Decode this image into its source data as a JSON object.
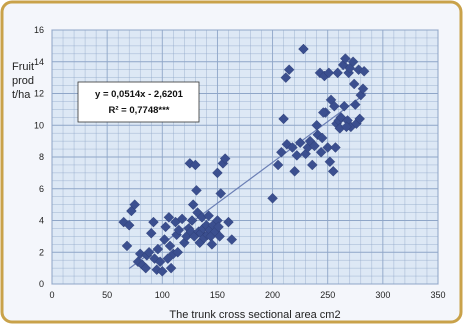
{
  "chart_data": {
    "type": "scatter",
    "title": "",
    "xlabel": "The trunk cross sectional area cm2",
    "ylabel": "Fruit prod t/ha",
    "ylabel_lines": [
      "Fruit",
      "prod",
      "t/ha"
    ],
    "xlim": [
      0,
      350
    ],
    "ylim": [
      0,
      16
    ],
    "x_ticks": [
      0,
      50,
      100,
      150,
      200,
      250,
      300,
      350
    ],
    "y_ticks": [
      0,
      2,
      4,
      6,
      8,
      10,
      12,
      14,
      16
    ],
    "grid": true,
    "equation": "y = 0,0514x - 2,6201",
    "r_squared": "R² = 0,7748***",
    "trendline": {
      "slope": 0.0514,
      "intercept": -2.6201,
      "x_range": [
        70,
        285
      ]
    },
    "colors": {
      "background": "#dde8f5",
      "grid": "#8fa6c8",
      "marker": "#3b4f8f",
      "trendline": "#6b7fb5",
      "frame": "#c9a24a"
    },
    "points": [
      [
        65,
        3.9
      ],
      [
        68,
        2.4
      ],
      [
        70,
        3.7
      ],
      [
        72,
        4.6
      ],
      [
        75,
        5.0
      ],
      [
        78,
        1.4
      ],
      [
        80,
        1.9
      ],
      [
        82,
        1.2
      ],
      [
        85,
        1.0
      ],
      [
        86,
        1.8
      ],
      [
        88,
        2.0
      ],
      [
        90,
        3.2
      ],
      [
        92,
        3.9
      ],
      [
        93,
        1.6
      ],
      [
        95,
        0.9
      ],
      [
        96,
        2.2
      ],
      [
        98,
        1.4
      ],
      [
        100,
        0.8
      ],
      [
        102,
        2.8
      ],
      [
        103,
        3.6
      ],
      [
        105,
        1.6
      ],
      [
        106,
        4.2
      ],
      [
        107,
        2.4
      ],
      [
        108,
        1.0
      ],
      [
        110,
        1.9
      ],
      [
        112,
        3.9
      ],
      [
        113,
        3.1
      ],
      [
        114,
        2.0
      ],
      [
        115,
        3.4
      ],
      [
        118,
        4.1
      ],
      [
        120,
        2.6
      ],
      [
        122,
        3.0
      ],
      [
        124,
        3.5
      ],
      [
        125,
        7.6
      ],
      [
        126,
        3.3
      ],
      [
        127,
        4.0
      ],
      [
        128,
        5.0
      ],
      [
        129,
        3.0
      ],
      [
        130,
        7.5
      ],
      [
        131,
        5.9
      ],
      [
        132,
        4.5
      ],
      [
        133,
        3.3
      ],
      [
        134,
        2.6
      ],
      [
        135,
        3.2
      ],
      [
        136,
        4.2
      ],
      [
        137,
        3.5
      ],
      [
        138,
        2.9
      ],
      [
        140,
        3.7
      ],
      [
        141,
        3.1
      ],
      [
        142,
        4.3
      ],
      [
        143,
        3.4
      ],
      [
        144,
        3.0
      ],
      [
        145,
        2.5
      ],
      [
        146,
        3.7
      ],
      [
        148,
        3.3
      ],
      [
        150,
        4.0
      ],
      [
        151,
        3.6
      ],
      [
        152,
        3.0
      ],
      [
        153,
        5.7
      ],
      [
        155,
        7.6
      ],
      [
        157,
        7.9
      ],
      [
        160,
        3.9
      ],
      [
        163,
        2.8
      ],
      [
        150,
        7.0
      ],
      [
        200,
        5.4
      ],
      [
        205,
        7.5
      ],
      [
        208,
        8.3
      ],
      [
        210,
        10.4
      ],
      [
        212,
        13.0
      ],
      [
        213,
        8.8
      ],
      [
        215,
        13.5
      ],
      [
        218,
        8.6
      ],
      [
        220,
        7.1
      ],
      [
        222,
        8.1
      ],
      [
        225,
        8.9
      ],
      [
        228,
        14.8
      ],
      [
        230,
        8.2
      ],
      [
        232,
        8.6
      ],
      [
        234,
        9.0
      ],
      [
        236,
        7.5
      ],
      [
        238,
        8.7
      ],
      [
        240,
        10.0
      ],
      [
        241,
        9.4
      ],
      [
        243,
        13.3
      ],
      [
        244,
        8.3
      ],
      [
        245,
        9.2
      ],
      [
        247,
        13.1
      ],
      [
        248,
        10.8
      ],
      [
        250,
        8.6
      ],
      [
        251,
        13.3
      ],
      [
        252,
        7.7
      ],
      [
        253,
        11.6
      ],
      [
        255,
        7.1
      ],
      [
        256,
        11.2
      ],
      [
        258,
        10.1
      ],
      [
        259,
        13.3
      ],
      [
        260,
        10.3
      ],
      [
        262,
        10.5
      ],
      [
        264,
        13.8
      ],
      [
        265,
        11.2
      ],
      [
        266,
        14.2
      ],
      [
        268,
        10.3
      ],
      [
        269,
        13.3
      ],
      [
        270,
        13.6
      ],
      [
        271,
        9.9
      ],
      [
        273,
        14.0
      ],
      [
        274,
        12.6
      ],
      [
        275,
        11.3
      ],
      [
        276,
        10.1
      ],
      [
        278,
        13.5
      ],
      [
        279,
        10.4
      ],
      [
        280,
        11.9
      ],
      [
        282,
        12.3
      ],
      [
        283,
        13.4
      ],
      [
        246,
        10.8
      ],
      [
        257,
        8.6
      ],
      [
        261,
        9.8
      ],
      [
        267,
        9.9
      ]
    ]
  }
}
